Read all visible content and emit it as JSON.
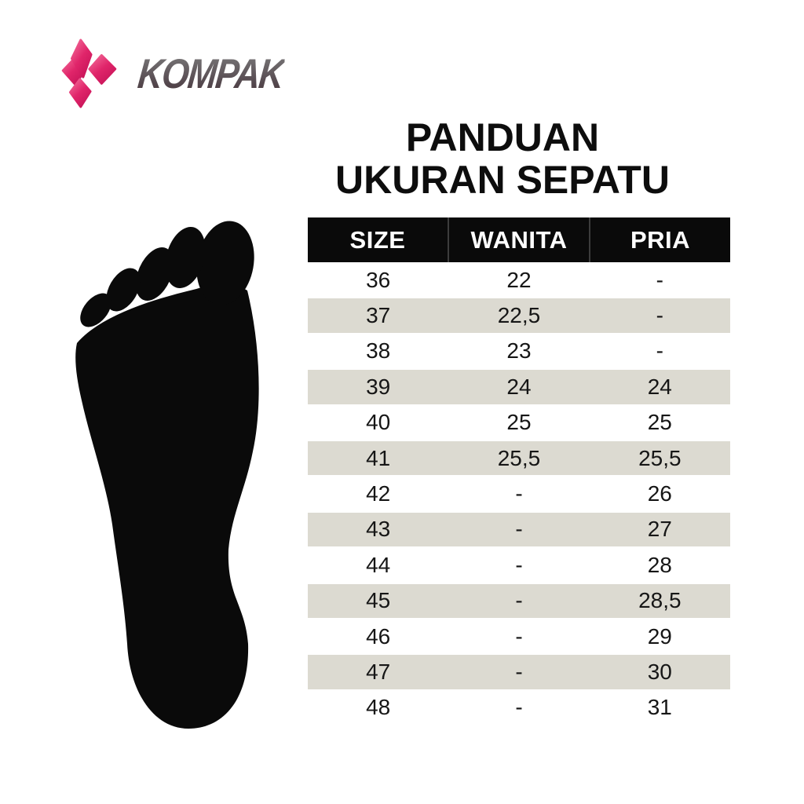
{
  "brand": {
    "name": "KOMPAK",
    "icon": "kodi-k-diamonds-icon"
  },
  "title": {
    "line1": "PANDUAN",
    "line2": "UKURAN SEPATU"
  },
  "table": {
    "headers": [
      "SIZE",
      "WANITA",
      "PRIA"
    ],
    "rows": [
      [
        "36",
        "22",
        "-"
      ],
      [
        "37",
        "22,5",
        "-"
      ],
      [
        "38",
        "23",
        "-"
      ],
      [
        "39",
        "24",
        "24"
      ],
      [
        "40",
        "25",
        "25"
      ],
      [
        "41",
        "25,5",
        "25,5"
      ],
      [
        "42",
        "-",
        "26"
      ],
      [
        "43",
        "-",
        "27"
      ],
      [
        "44",
        "-",
        "28"
      ],
      [
        "45",
        "-",
        "28,5"
      ],
      [
        "46",
        "-",
        "29"
      ],
      [
        "47",
        "-",
        "30"
      ],
      [
        "48",
        "-",
        "31"
      ]
    ]
  },
  "chart_data": {
    "type": "table",
    "title": "PANDUAN UKURAN SEPATU",
    "columns": [
      "SIZE",
      "WANITA",
      "PRIA"
    ],
    "rows": [
      [
        "36",
        "22",
        "-"
      ],
      [
        "37",
        "22,5",
        "-"
      ],
      [
        "38",
        "23",
        "-"
      ],
      [
        "39",
        "24",
        "24"
      ],
      [
        "40",
        "25",
        "25"
      ],
      [
        "41",
        "25,5",
        "25,5"
      ],
      [
        "42",
        "-",
        "26"
      ],
      [
        "43",
        "-",
        "27"
      ],
      [
        "44",
        "-",
        "28"
      ],
      [
        "45",
        "-",
        "28,5"
      ],
      [
        "46",
        "-",
        "29"
      ],
      [
        "47",
        "-",
        "30"
      ],
      [
        "48",
        "-",
        "31"
      ]
    ]
  },
  "colors": {
    "accent_pink": "#e0256a",
    "accent_pink_light": "#f4719c",
    "header_bg": "#0a0a0a",
    "header_text": "#ffffff",
    "row_alt_bg": "#dcdad1",
    "body_text": "#161616",
    "foot_silhouette": "#0a0a0a"
  }
}
